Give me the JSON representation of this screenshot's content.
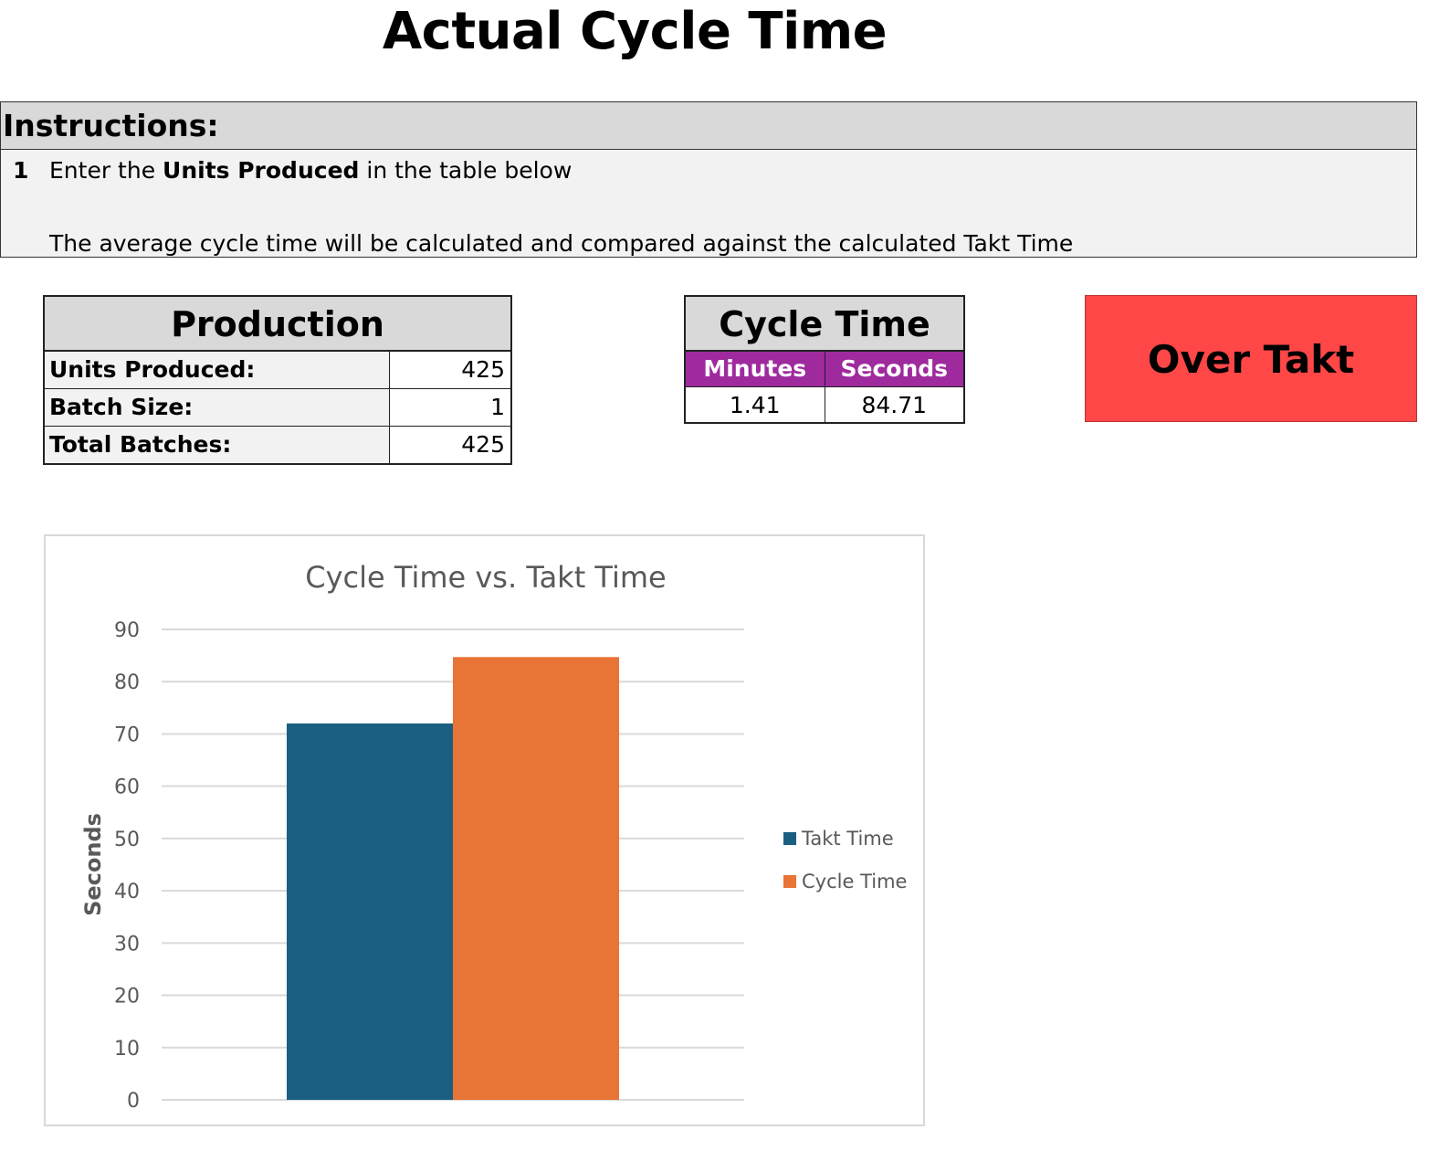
{
  "page": {
    "title": "Actual Cycle Time"
  },
  "instructions": {
    "header": "Instructions:",
    "step_number": "1",
    "step_prefix": "Enter the ",
    "step_bold": "Units Produced",
    "step_suffix": " in the table below",
    "note": "The average cycle time will be calculated and compared against the calculated Takt Time"
  },
  "production": {
    "title": "Production",
    "rows": [
      {
        "label": "Units Produced:",
        "value": "425"
      },
      {
        "label": "Batch Size:",
        "value": "1"
      },
      {
        "label": "Total Batches:",
        "value": "425"
      }
    ]
  },
  "cycle_time": {
    "title": "Cycle Time",
    "minutes_label": "Minutes",
    "seconds_label": "Seconds",
    "minutes_value": "1.41",
    "seconds_value": "84.71"
  },
  "status": {
    "label": "Over Takt",
    "color": "#ff4747"
  },
  "chart_data": {
    "type": "bar",
    "title": "Cycle Time vs. Takt Time",
    "xlabel": "",
    "ylabel": "Seconds",
    "ylim": [
      0,
      90
    ],
    "yticks": [
      0,
      10,
      20,
      30,
      40,
      50,
      60,
      70,
      80,
      90
    ],
    "grid": true,
    "legend_position": "right",
    "categories": [
      ""
    ],
    "series": [
      {
        "name": "Takt Time",
        "values": [
          72
        ],
        "color": "#1a5f82"
      },
      {
        "name": "Cycle Time",
        "values": [
          84.71
        ],
        "color": "#e87435"
      }
    ]
  }
}
